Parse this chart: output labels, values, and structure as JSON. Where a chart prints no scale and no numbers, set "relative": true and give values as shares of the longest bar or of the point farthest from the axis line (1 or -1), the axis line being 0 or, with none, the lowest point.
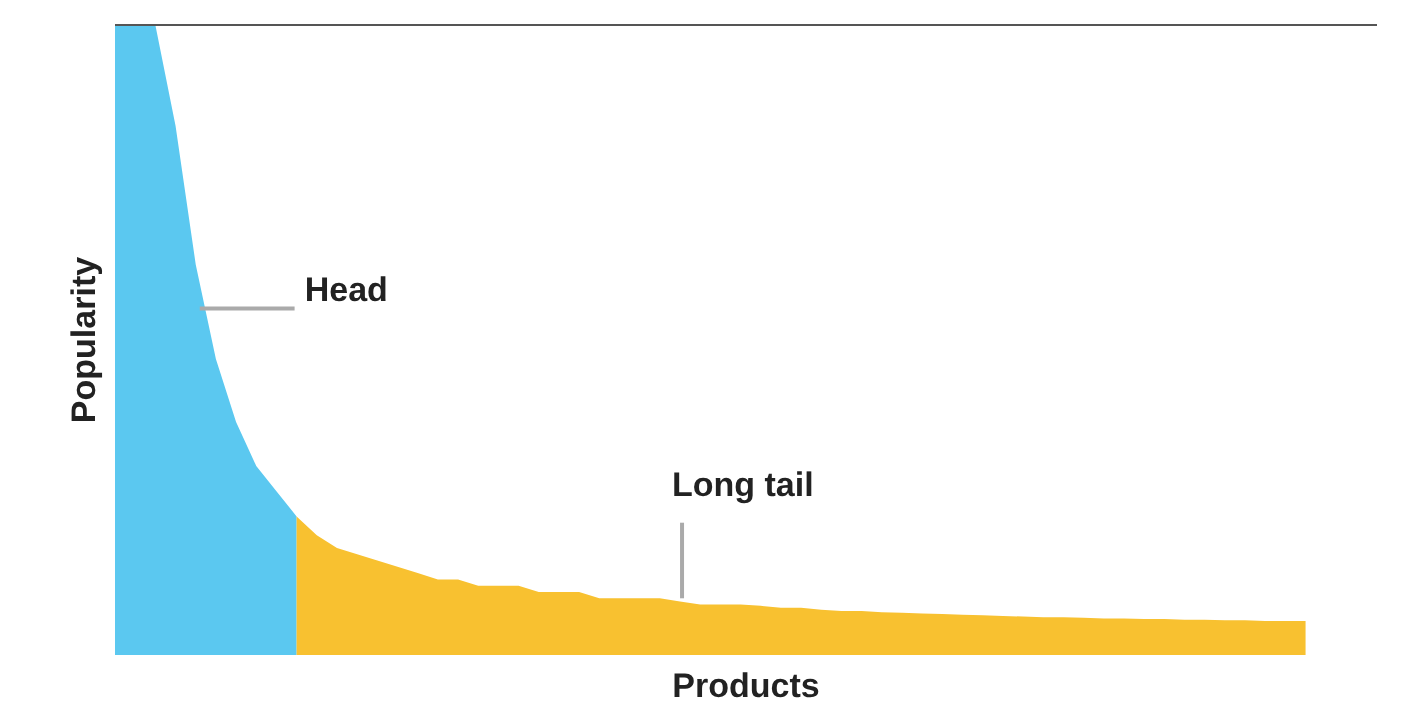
{
  "chart_data": {
    "type": "area",
    "relative": true,
    "xlabel": "Products",
    "ylabel": "Popularity",
    "grid": false,
    "categories": [
      null,
      null,
      null,
      null,
      null,
      null,
      null,
      null,
      null,
      null,
      null,
      null,
      null,
      null,
      null,
      null,
      null,
      null,
      null,
      null,
      null,
      null,
      null,
      null,
      null,
      null,
      null,
      null,
      null,
      null,
      null,
      null,
      null,
      null,
      null,
      null,
      null,
      null,
      null,
      null,
      null,
      null,
      null,
      null,
      null,
      null,
      null,
      null,
      null,
      null,
      null,
      null,
      null,
      null,
      null,
      null,
      null,
      null,
      null,
      null
    ],
    "series": [
      {
        "color": "#5bc8f0",
        "values": [
          1.0,
          1.0,
          1.0,
          0.84,
          0.62,
          0.47,
          0.37,
          0.3,
          0.26,
          0.22,
          null,
          null,
          null,
          null,
          null,
          null,
          null,
          null,
          null,
          null,
          null,
          null,
          null,
          null,
          null,
          null,
          null,
          null,
          null,
          null,
          null,
          null,
          null,
          null,
          null,
          null,
          null,
          null,
          null,
          null,
          null,
          null,
          null,
          null,
          null,
          null,
          null,
          null,
          null,
          null,
          null,
          null,
          null,
          null,
          null,
          null,
          null,
          null,
          null,
          null
        ]
      },
      {
        "color": "#f8c130",
        "values": [
          null,
          null,
          null,
          null,
          null,
          null,
          null,
          null,
          null,
          0.22,
          0.19,
          0.17,
          0.16,
          0.15,
          0.14,
          0.13,
          0.12,
          0.12,
          0.11,
          0.11,
          0.11,
          0.1,
          0.1,
          0.1,
          0.09,
          0.09,
          0.09,
          0.09,
          0.085,
          0.08,
          0.08,
          0.08,
          0.078,
          0.075,
          0.075,
          0.072,
          0.07,
          0.07,
          0.068,
          0.067,
          0.066,
          0.065,
          0.064,
          0.063,
          0.062,
          0.061,
          0.06,
          0.06,
          0.059,
          0.058,
          0.058,
          0.057,
          0.057,
          0.056,
          0.056,
          0.055,
          0.055,
          0.054,
          0.054,
          0.054
        ]
      }
    ],
    "annotations": [
      "Head",
      "Long tail"
    ]
  }
}
